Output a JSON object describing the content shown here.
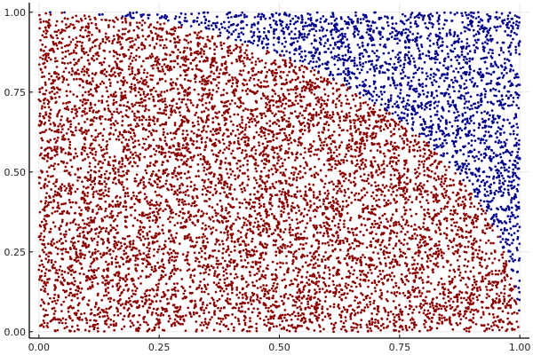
{
  "chart_data": {
    "type": "scatter",
    "title": "",
    "xlabel": "",
    "ylabel": "",
    "xlim": [
      -0.02,
      1.02
    ],
    "ylim": [
      -0.02,
      1.03
    ],
    "grid": true,
    "legend": "none",
    "x_ticks": [
      0.0,
      0.25,
      0.5,
      0.75,
      1.0
    ],
    "y_ticks": [
      0.0,
      0.25,
      0.5,
      0.75,
      1.0
    ],
    "x_tick_labels": [
      "0.00",
      "0.25",
      "0.50",
      "0.75",
      "1.00"
    ],
    "y_tick_labels": [
      "0.00",
      "0.25",
      "0.50",
      "0.75",
      "1.00"
    ],
    "point_count": 10000,
    "distribution": "uniform random points on the unit square [0,1] x [0,1]",
    "classification_rule": "inside when x^2 + y^2 <= 1",
    "series": [
      {
        "name": "",
        "color": "#8b0000",
        "region": "inside unit circle (x^2 + y^2 <= 1)"
      },
      {
        "name": "",
        "color": "#00008b",
        "region": "outside unit circle (x^2 + y^2 > 1)"
      }
    ]
  }
}
